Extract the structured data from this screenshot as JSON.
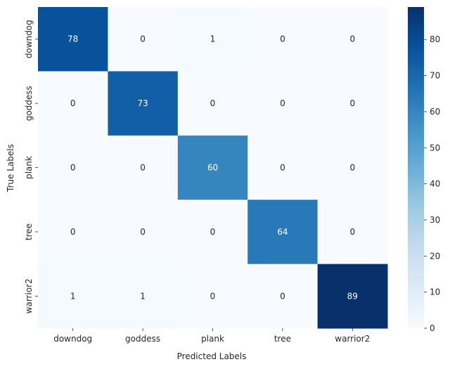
{
  "chart_data": {
    "type": "heatmap",
    "title": "",
    "xlabel": "Predicted Labels",
    "ylabel": "True Labels",
    "x_categories": [
      "downdog",
      "goddess",
      "plank",
      "tree",
      "warrior2"
    ],
    "y_categories": [
      "downdog",
      "goddess",
      "plank",
      "tree",
      "warrior2"
    ],
    "values": [
      [
        78,
        0,
        1,
        0,
        0
      ],
      [
        0,
        73,
        0,
        0,
        0
      ],
      [
        0,
        0,
        60,
        0,
        0
      ],
      [
        0,
        0,
        0,
        64,
        0
      ],
      [
        1,
        1,
        0,
        0,
        89
      ]
    ],
    "colormap": "Blues",
    "vmin": 0,
    "vmax": 89,
    "colorbar": {
      "ticks": [
        0,
        10,
        20,
        30,
        40,
        50,
        60,
        70,
        80
      ]
    },
    "annotations": true,
    "grid": false,
    "colors": {
      "low": "#f7fbff",
      "high": "#08306b",
      "text_dark": "#262626",
      "text_light": "#ffffff"
    }
  }
}
